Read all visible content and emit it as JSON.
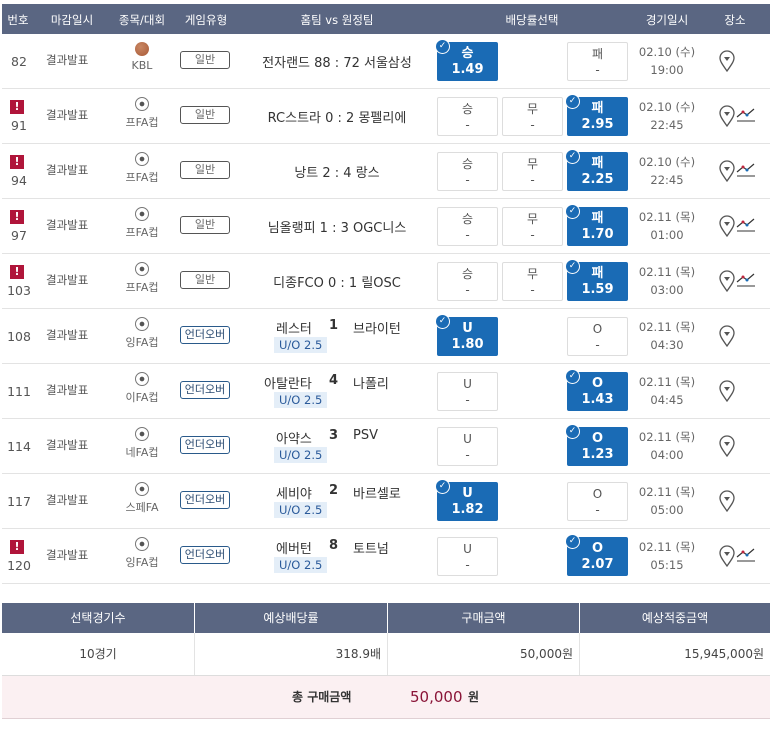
{
  "headers": [
    "번호",
    "마감일시",
    "종목/대회",
    "게임유형",
    "홈팀 vs 원정팀",
    "배당률선택",
    "경기일시",
    "장소"
  ],
  "rows": [
    {
      "no": "82",
      "warn": false,
      "close": "결과발표",
      "sport": "basketball",
      "league": "KBL",
      "type": "일반",
      "uo": false,
      "match": "전자랜드 88 : 72 서울삼성",
      "odds": [
        {
          "label": "승",
          "value": "1.49",
          "selected": true
        },
        null,
        {
          "label": "패",
          "value": "-",
          "selected": false
        }
      ],
      "date": "02.10 (수)",
      "time": "19:00",
      "trend": false
    },
    {
      "no": "91",
      "warn": true,
      "close": "결과발표",
      "sport": "soccer",
      "league": "프FA컵",
      "type": "일반",
      "uo": false,
      "match": "RC스트라 0 : 2 몽펠리에",
      "odds": [
        {
          "label": "승",
          "value": "-",
          "selected": false
        },
        {
          "label": "무",
          "value": "-",
          "selected": false
        },
        {
          "label": "패",
          "value": "2.95",
          "selected": true
        }
      ],
      "date": "02.10 (수)",
      "time": "22:45",
      "trend": true
    },
    {
      "no": "94",
      "warn": true,
      "close": "결과발표",
      "sport": "soccer",
      "league": "프FA컵",
      "type": "일반",
      "uo": false,
      "match": "낭트 2 : 4 랑스",
      "odds": [
        {
          "label": "승",
          "value": "-",
          "selected": false
        },
        {
          "label": "무",
          "value": "-",
          "selected": false
        },
        {
          "label": "패",
          "value": "2.25",
          "selected": true
        }
      ],
      "date": "02.10 (수)",
      "time": "22:45",
      "trend": true
    },
    {
      "no": "97",
      "warn": true,
      "close": "결과발표",
      "sport": "soccer",
      "league": "프FA컵",
      "type": "일반",
      "uo": false,
      "match": "님올랭피 1 : 3 OGC니스",
      "odds": [
        {
          "label": "승",
          "value": "-",
          "selected": false
        },
        {
          "label": "무",
          "value": "-",
          "selected": false
        },
        {
          "label": "패",
          "value": "1.70",
          "selected": true
        }
      ],
      "date": "02.11 (목)",
      "time": "01:00",
      "trend": true
    },
    {
      "no": "103",
      "warn": true,
      "close": "결과발표",
      "sport": "soccer",
      "league": "프FA컵",
      "type": "일반",
      "uo": false,
      "match": "디종FCO 0 : 1 릴OSC",
      "odds": [
        {
          "label": "승",
          "value": "-",
          "selected": false
        },
        {
          "label": "무",
          "value": "-",
          "selected": false
        },
        {
          "label": "패",
          "value": "1.59",
          "selected": true
        }
      ],
      "date": "02.11 (목)",
      "time": "03:00",
      "trend": true
    },
    {
      "no": "108",
      "warn": false,
      "close": "결과발표",
      "sport": "soccer",
      "league": "잉FA컵",
      "type": "언더오버",
      "uo": true,
      "home": "레스터",
      "score": "1",
      "away": "브라이턴",
      "line": "U/O 2.5",
      "odds": [
        {
          "label": "U",
          "value": "1.80",
          "selected": true
        },
        null,
        {
          "label": "O",
          "value": "-",
          "selected": false
        }
      ],
      "date": "02.11 (목)",
      "time": "04:30",
      "trend": false
    },
    {
      "no": "111",
      "warn": false,
      "close": "결과발표",
      "sport": "soccer",
      "league": "이FA컵",
      "type": "언더오버",
      "uo": true,
      "home": "아탈란타",
      "score": "4",
      "away": "나폴리",
      "line": "U/O 2.5",
      "odds": [
        {
          "label": "U",
          "value": "-",
          "selected": false
        },
        null,
        {
          "label": "O",
          "value": "1.43",
          "selected": true
        }
      ],
      "date": "02.11 (목)",
      "time": "04:45",
      "trend": false
    },
    {
      "no": "114",
      "warn": false,
      "close": "결과발표",
      "sport": "soccer",
      "league": "네FA컵",
      "type": "언더오버",
      "uo": true,
      "home": "아약스",
      "score": "3",
      "away": "PSV",
      "line": "U/O 2.5",
      "odds": [
        {
          "label": "U",
          "value": "-",
          "selected": false
        },
        null,
        {
          "label": "O",
          "value": "1.23",
          "selected": true
        }
      ],
      "date": "02.11 (목)",
      "time": "04:00",
      "trend": false
    },
    {
      "no": "117",
      "warn": false,
      "close": "결과발표",
      "sport": "soccer",
      "league": "스페FA",
      "type": "언더오버",
      "uo": true,
      "home": "세비야",
      "score": "2",
      "away": "바르셀로",
      "line": "U/O 2.5",
      "odds": [
        {
          "label": "U",
          "value": "1.82",
          "selected": true
        },
        null,
        {
          "label": "O",
          "value": "-",
          "selected": false
        }
      ],
      "date": "02.11 (목)",
      "time": "05:00",
      "trend": false
    },
    {
      "no": "120",
      "warn": true,
      "close": "결과발표",
      "sport": "soccer",
      "league": "잉FA컵",
      "type": "언더오버",
      "uo": true,
      "home": "에버턴",
      "score": "8",
      "away": "토트넘",
      "line": "U/O 2.5",
      "odds": [
        {
          "label": "U",
          "value": "-",
          "selected": false
        },
        null,
        {
          "label": "O",
          "value": "2.07",
          "selected": true
        }
      ],
      "date": "02.11 (목)",
      "time": "05:15",
      "trend": true
    }
  ],
  "summary": {
    "headers": [
      "선택경기수",
      "예상배당률",
      "구매금액",
      "예상적중금액"
    ],
    "values": [
      "10경기",
      "318.9배",
      "50,000원",
      "15,945,000원"
    ],
    "total_label": "총 구매금액",
    "total_amount": "50,000",
    "total_unit": "원"
  },
  "colors": {
    "header": "#5a6682",
    "selected": "#1a6bb5",
    "warn": "#b0153a",
    "total": "#8a1538"
  }
}
